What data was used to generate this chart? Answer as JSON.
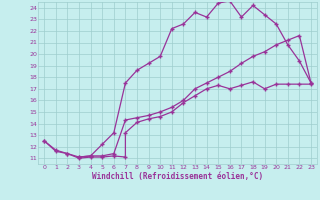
{
  "xlabel": "Windchill (Refroidissement éolien,°C)",
  "background_color": "#c6eeee",
  "grid_color": "#9ecece",
  "line_color": "#993399",
  "spine_color": "#9ecece",
  "xlim": [
    -0.5,
    23.5
  ],
  "ylim": [
    10.5,
    24.5
  ],
  "xticks": [
    0,
    1,
    2,
    3,
    4,
    5,
    6,
    7,
    8,
    9,
    10,
    11,
    12,
    13,
    14,
    15,
    16,
    17,
    18,
    19,
    20,
    21,
    22,
    23
  ],
  "yticks": [
    11,
    12,
    13,
    14,
    15,
    16,
    17,
    18,
    19,
    20,
    21,
    22,
    23,
    24
  ],
  "line1_x": [
    0,
    1,
    2,
    3,
    4,
    5,
    6,
    7,
    7,
    8,
    9,
    10,
    11,
    12,
    13,
    14,
    15,
    16,
    17,
    18,
    19,
    20,
    21,
    22,
    23
  ],
  "line1_y": [
    12.5,
    11.6,
    11.4,
    11.0,
    11.1,
    11.1,
    11.2,
    11.1,
    13.2,
    14.1,
    14.4,
    14.6,
    15.0,
    15.8,
    16.4,
    17.0,
    17.3,
    17.0,
    17.3,
    17.6,
    17.0,
    17.4,
    17.4,
    17.4,
    17.4
  ],
  "line2_x": [
    0,
    1,
    2,
    3,
    4,
    5,
    6,
    7,
    8,
    9,
    10,
    11,
    12,
    13,
    14,
    15,
    16,
    17,
    18,
    19,
    20,
    21,
    22,
    23
  ],
  "line2_y": [
    12.5,
    11.7,
    11.4,
    11.1,
    11.2,
    12.2,
    13.2,
    17.5,
    18.6,
    19.2,
    19.8,
    22.2,
    22.6,
    23.6,
    23.2,
    24.4,
    24.6,
    23.2,
    24.2,
    23.4,
    22.6,
    20.8,
    19.4,
    17.5
  ],
  "line3_x": [
    3,
    4,
    5,
    6,
    7,
    8,
    9,
    10,
    11,
    12,
    13,
    14,
    15,
    16,
    17,
    18,
    19,
    20,
    21,
    22,
    23
  ],
  "line3_y": [
    11.1,
    11.2,
    11.2,
    11.4,
    14.3,
    14.5,
    14.7,
    15.0,
    15.4,
    16.0,
    17.0,
    17.5,
    18.0,
    18.5,
    19.2,
    19.8,
    20.2,
    20.8,
    21.2,
    21.6,
    17.5
  ]
}
